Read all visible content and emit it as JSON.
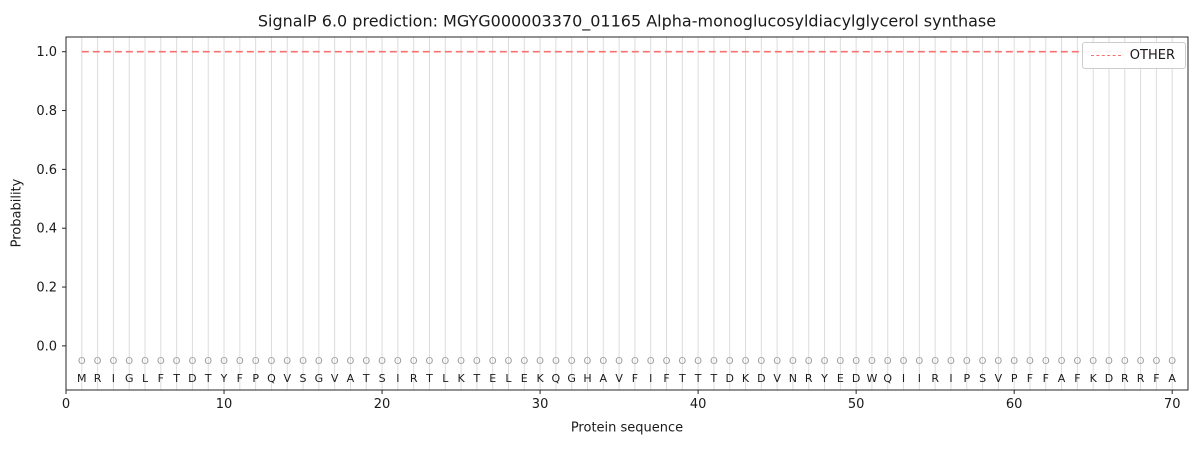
{
  "chart_data": {
    "type": "line",
    "title": "SignalP 6.0 prediction: MGYG000003370_01165 Alpha-monoglucosyldiacylglycerol synthase",
    "xlabel": "Protein sequence",
    "ylabel": "Probability",
    "xlim": [
      0,
      71
    ],
    "ylim": [
      -0.15,
      1.05
    ],
    "xticks": [
      0,
      10,
      20,
      30,
      40,
      50,
      60,
      70
    ],
    "yticks": [
      0.0,
      0.2,
      0.4,
      0.6,
      0.8,
      1.0
    ],
    "grid": "vertical-per-residue",
    "legend": {
      "position": "upper right",
      "entries": [
        {
          "label": "OTHER",
          "color": "#f87272",
          "dash": true
        }
      ]
    },
    "sequence": "MRIGLFTDTYFPQVSGVATSIRTLKTELEKQGHAVFIFTTTDKDVNRYEDWQIIRIPSVPFFAFKDRRFA",
    "per_position_labels": "OOOOOOOOOOOOOOOOOOOOOOOOOOOOOOOOOOOOOOOOOOOOOOOOOOOOOOOOOOOOOOOOOOOOOO",
    "series": [
      {
        "name": "OTHER",
        "x": [
          1,
          2,
          3,
          4,
          5,
          6,
          7,
          8,
          9,
          10,
          11,
          12,
          13,
          14,
          15,
          16,
          17,
          18,
          19,
          20,
          21,
          22,
          23,
          24,
          25,
          26,
          27,
          28,
          29,
          30,
          31,
          32,
          33,
          34,
          35,
          36,
          37,
          38,
          39,
          40,
          41,
          42,
          43,
          44,
          45,
          46,
          47,
          48,
          49,
          50,
          51,
          52,
          53,
          54,
          55,
          56,
          57,
          58,
          59,
          60,
          61,
          62,
          63,
          64,
          65,
          66,
          67,
          68,
          69,
          70
        ],
        "values": [
          1.0,
          1.0,
          1.0,
          1.0,
          1.0,
          1.0,
          1.0,
          1.0,
          1.0,
          1.0,
          1.0,
          1.0,
          1.0,
          1.0,
          1.0,
          1.0,
          1.0,
          1.0,
          1.0,
          1.0,
          1.0,
          1.0,
          1.0,
          1.0,
          1.0,
          1.0,
          1.0,
          1.0,
          1.0,
          1.0,
          1.0,
          1.0,
          1.0,
          1.0,
          1.0,
          1.0,
          1.0,
          1.0,
          1.0,
          1.0,
          1.0,
          1.0,
          1.0,
          1.0,
          1.0,
          1.0,
          1.0,
          1.0,
          1.0,
          1.0,
          1.0,
          1.0,
          1.0,
          1.0,
          1.0,
          1.0,
          1.0,
          1.0,
          1.0,
          1.0,
          1.0,
          1.0,
          1.0,
          1.0,
          1.0,
          1.0,
          1.0,
          1.0,
          1.0,
          1.0
        ]
      }
    ]
  },
  "colors": {
    "other_line": "#f87272",
    "grid": "#dcdcdc",
    "spine": "#262626",
    "tick": "#262626",
    "tick_label": "#1a1a1a",
    "residue_marker": "#9e9e9e",
    "residue_letter": "#1a1a1a"
  }
}
